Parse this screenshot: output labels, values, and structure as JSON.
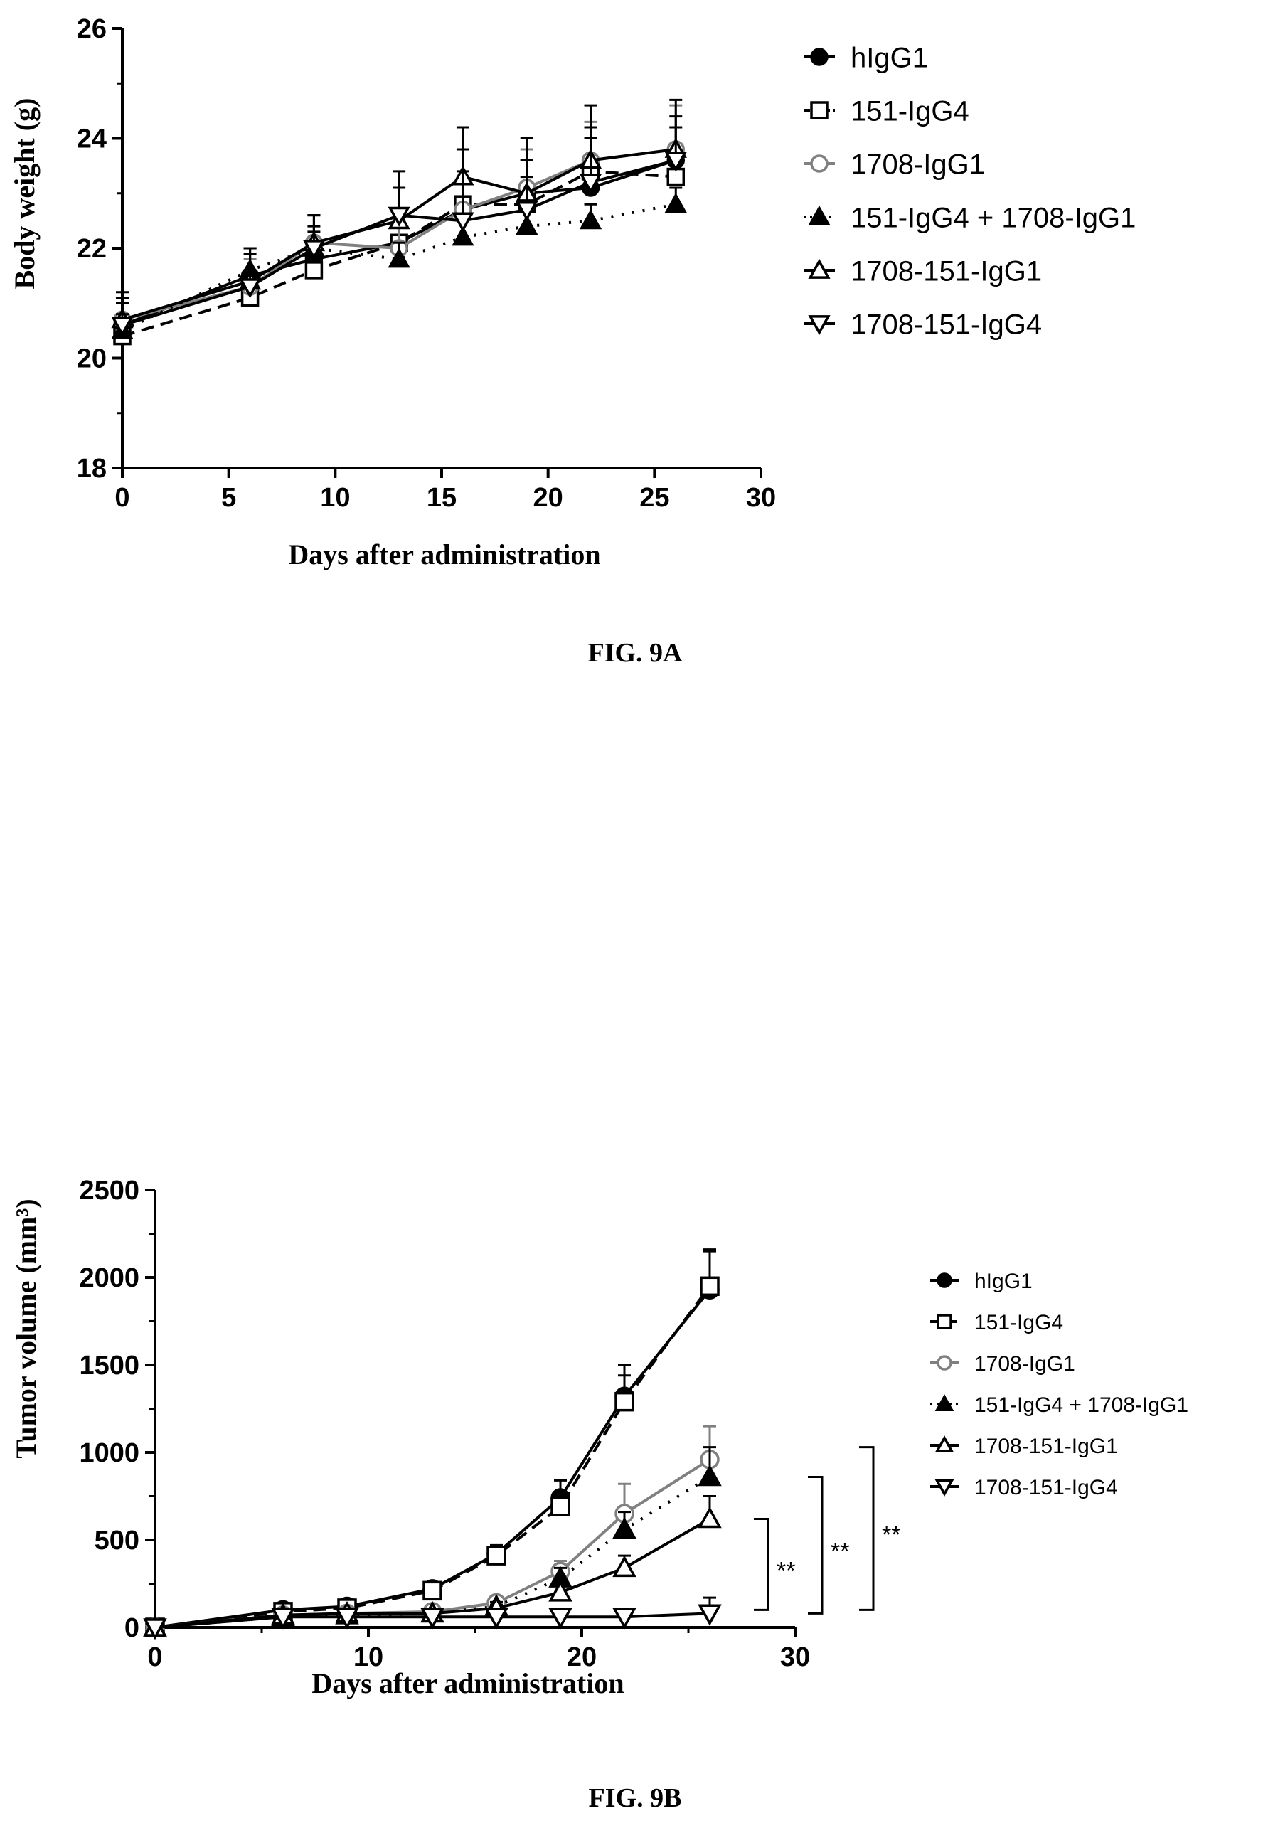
{
  "chart_data": [
    {
      "type": "line",
      "caption": "FIG. 9A",
      "title": "",
      "xlabel": "Days after administration",
      "ylabel": "Body weight (g)",
      "xlim": [
        0,
        30
      ],
      "ylim": [
        18,
        26
      ],
      "xticks": [
        "0",
        "5",
        "10",
        "15",
        "20",
        "25",
        "30"
      ],
      "yticks": [
        "18",
        "20",
        "22",
        "24",
        "26"
      ],
      "legend_position": "right",
      "grid": false,
      "x": [
        0,
        6,
        9,
        13,
        16,
        19,
        22,
        26
      ],
      "series": [
        {
          "name": "hIgG1",
          "values": [
            20.6,
            21.5,
            21.8,
            22.1,
            22.7,
            23.0,
            23.1,
            23.6
          ],
          "errors": [
            0.4,
            0.5,
            0.5,
            0.6,
            0.7,
            0.6,
            0.6,
            0.6
          ]
        },
        {
          "name": "151-IgG4",
          "values": [
            20.4,
            21.1,
            21.6,
            22.1,
            22.8,
            22.8,
            23.4,
            23.3
          ],
          "errors": [
            0.4,
            0.4,
            0.5,
            0.5,
            0.5,
            0.5,
            0.6,
            0.6
          ]
        },
        {
          "name": "1708-IgG1",
          "values": [
            20.7,
            21.3,
            22.1,
            22.0,
            22.7,
            23.1,
            23.6,
            23.8
          ],
          "errors": [
            0.4,
            0.5,
            0.5,
            0.6,
            0.6,
            0.7,
            0.7,
            0.8
          ]
        },
        {
          "name": "151-IgG4 + 1708-IgG1",
          "values": [
            20.5,
            21.6,
            22.0,
            21.8,
            22.2,
            22.4,
            22.5,
            22.8
          ],
          "errors": [
            0.3,
            0.4,
            0.4,
            0.3,
            0.3,
            0.3,
            0.3,
            0.3
          ]
        },
        {
          "name": "1708-151-IgG1",
          "values": [
            20.7,
            21.4,
            22.1,
            22.5,
            23.3,
            23.0,
            23.6,
            23.8
          ],
          "errors": [
            0.5,
            0.6,
            0.5,
            0.6,
            0.5,
            0.6,
            0.6,
            0.6
          ]
        },
        {
          "name": "1708-151-IgG4",
          "values": [
            20.6,
            21.3,
            22.0,
            22.6,
            22.5,
            22.7,
            23.2,
            23.6
          ],
          "errors": [
            0.5,
            0.6,
            0.6,
            0.8,
            1.7,
            1.3,
            1.4,
            1.1
          ]
        }
      ]
    },
    {
      "type": "line",
      "caption": "FIG. 9B",
      "title": "",
      "xlabel": "Days after administration",
      "ylabel": "Tumor volume (mm³)",
      "xlim": [
        0,
        30
      ],
      "ylim": [
        0,
        2500
      ],
      "xticks": [
        "0",
        "10",
        "20",
        "30"
      ],
      "yticks": [
        "0",
        "500",
        "1000",
        "1500",
        "2000",
        "2500"
      ],
      "legend_position": "right",
      "grid": false,
      "x": [
        0,
        6,
        9,
        13,
        16,
        19,
        22,
        26
      ],
      "series": [
        {
          "name": "hIgG1",
          "values": [
            0,
            100,
            120,
            220,
            420,
            740,
            1320,
            1930
          ],
          "errors": [
            0,
            20,
            30,
            30,
            50,
            100,
            180,
            230
          ]
        },
        {
          "name": "151-IgG4",
          "values": [
            0,
            90,
            110,
            210,
            410,
            690,
            1290,
            1950
          ],
          "errors": [
            0,
            20,
            20,
            30,
            50,
            80,
            150,
            200
          ]
        },
        {
          "name": "1708-IgG1",
          "values": [
            0,
            70,
            80,
            90,
            140,
            320,
            650,
            960
          ],
          "errors": [
            0,
            15,
            15,
            20,
            30,
            60,
            170,
            190
          ]
        },
        {
          "name": "151-IgG4 + 1708-IgG1",
          "values": [
            0,
            60,
            70,
            80,
            120,
            280,
            560,
            860
          ],
          "errors": [
            0,
            15,
            15,
            15,
            25,
            60,
            100,
            170
          ]
        },
        {
          "name": "1708-151-IgG1",
          "values": [
            0,
            70,
            80,
            80,
            110,
            200,
            340,
            620
          ],
          "errors": [
            0,
            15,
            15,
            15,
            20,
            40,
            70,
            130
          ]
        },
        {
          "name": "1708-151-IgG4",
          "values": [
            0,
            60,
            60,
            60,
            60,
            60,
            60,
            80
          ],
          "errors": [
            0,
            10,
            10,
            10,
            10,
            20,
            20,
            90
          ]
        }
      ],
      "annotations": [
        {
          "label": "**",
          "y_range": [
            100,
            620
          ]
        },
        {
          "label": "**",
          "y_range": [
            80,
            860
          ]
        },
        {
          "label": "**",
          "y_range": [
            100,
            1030
          ]
        }
      ]
    }
  ],
  "styles": [
    {
      "color": "#000000",
      "dash": "",
      "marker": "circle",
      "fill": "#000000"
    },
    {
      "color": "#000000",
      "dash": "18,10",
      "marker": "square",
      "fill": "#ffffff"
    },
    {
      "color": "#808080",
      "dash": "",
      "marker": "circle",
      "fill": "#ffffff"
    },
    {
      "color": "#000000",
      "dash": "3,12",
      "marker": "triangle-up",
      "fill": "#000000"
    },
    {
      "color": "#000000",
      "dash": "",
      "marker": "triangle-up",
      "fill": "#ffffff"
    },
    {
      "color": "#000000",
      "dash": "",
      "marker": "triangle-down",
      "fill": "#ffffff"
    }
  ]
}
